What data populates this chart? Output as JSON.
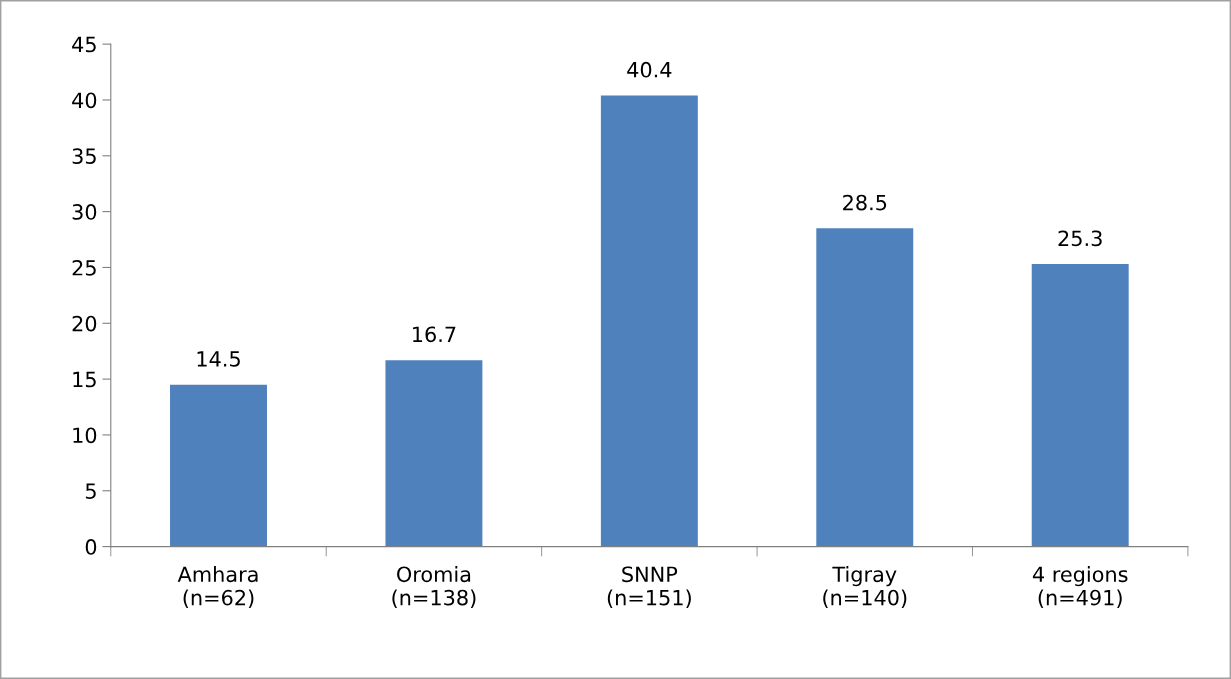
{
  "chart_data": {
    "type": "bar",
    "categories": [
      "Amhara\n(n=62)",
      "Oromia\n(n=138)",
      "SNNP\n(n=151)",
      "Tigray\n(n=140)",
      "4 regions\n(n=491)"
    ],
    "values": [
      14.5,
      16.7,
      40.4,
      28.5,
      25.3
    ],
    "color": "#4f81bd",
    "ylim": [
      0,
      45
    ],
    "yticks": [
      0,
      5,
      10,
      15,
      20,
      25,
      30,
      35,
      40,
      45
    ],
    "data_labels": true,
    "grid": false,
    "legend": false
  }
}
